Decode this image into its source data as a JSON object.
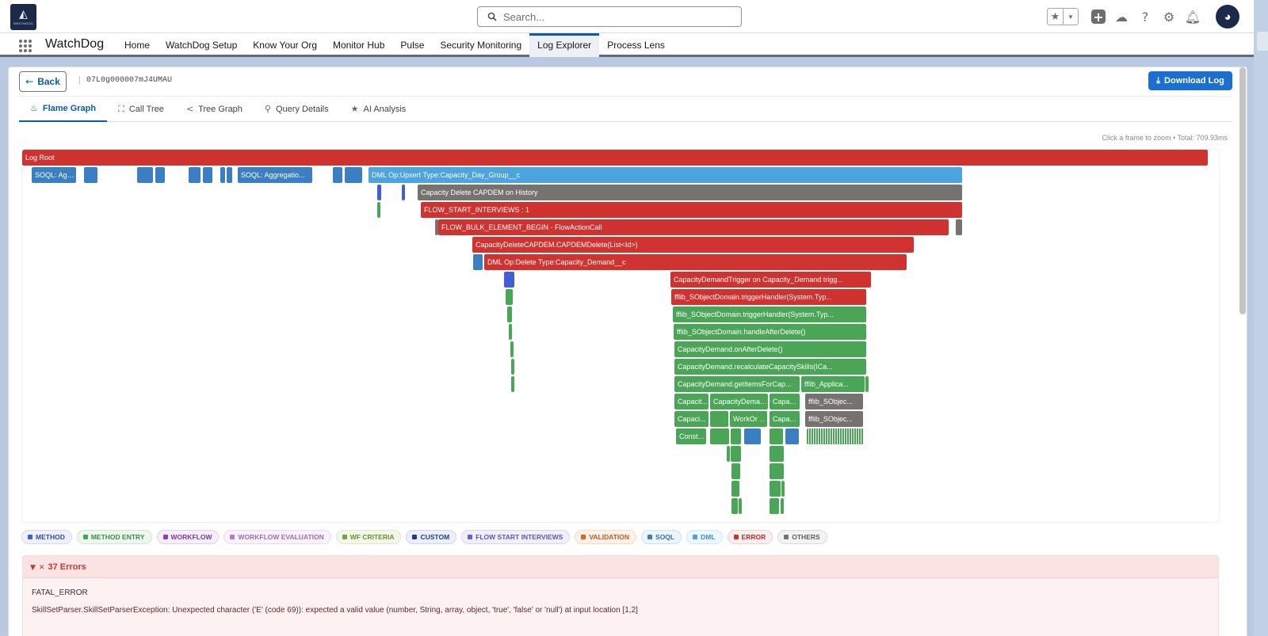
{
  "header": {
    "logo_icon": "watchdog-logo",
    "logo_text": "WATCHDOG",
    "search_placeholder": "Search...",
    "icons": [
      "favorites-star-icon",
      "chevron-down-icon",
      "add-icon",
      "trailhead-icon",
      "help-icon",
      "gear-icon",
      "bell-icon",
      "avatar"
    ]
  },
  "app_nav": {
    "app_name": "WatchDog",
    "items": [
      "Home",
      "WatchDog Setup",
      "Know Your Org",
      "Monitor Hub",
      "Pulse",
      "Security Monitoring",
      "Log Explorer",
      "Process Lens"
    ],
    "active": "Log Explorer"
  },
  "toolbar": {
    "back_label": "Back",
    "record_id": "07L0g000007mJ4UMAU",
    "download_label": "Download Log"
  },
  "tabs": {
    "items": [
      {
        "label": "Flame Graph",
        "icon": "flame-icon"
      },
      {
        "label": "Call Tree",
        "icon": "hierarchy-icon"
      },
      {
        "label": "Tree Graph",
        "icon": "share-icon"
      },
      {
        "label": "Query Details",
        "icon": "search-icon"
      },
      {
        "label": "AI Analysis",
        "icon": "star-icon"
      }
    ],
    "active": "Flame Graph"
  },
  "flame": {
    "hint": "Click a frame to zoom",
    "separator": " • ",
    "total": "Total: 709.93ms",
    "colors": {
      "error": "#d0322f",
      "dml": "#4ba3e0",
      "soql": "#3a7fc4",
      "method": "#3f5fd8",
      "custom": "#767270",
      "others": "#767270",
      "entry": "#4aa556"
    },
    "labels": {
      "root": "Log Root",
      "soql1": "SOQL: Agg...",
      "soql2": "SOQL: Aggregatio...",
      "dml_upsert": "DML Op:Upsert Type:Capacity_Day_Group__c",
      "capdem_history": "Capacity Delete CAPDEM on History",
      "flow_start": "FLOW_START_INTERVIEWS : 1",
      "flow_bulk": "FLOW_BULK_ELEMENT_BEGIN - FlowActionCall",
      "capdem_delete": "CapacityDeleteCAPDEM.CAPDEMDelete(List<Id>)",
      "dml_delete": "DML Op:Delete Type:Capacity_Demand__c",
      "trigger": "CapacityDemandTrigger on Capacity_Demand trigg...",
      "trigger_handler_1": "fflib_SObjectDomain.triggerHandler(System.Typ...",
      "trigger_handler_2": "fflib_SObjectDomain.triggerHandler(System.Typ...",
      "handle_after_delete": "fflib_SObjectDomain.handleAfterDelete()",
      "on_after_delete": "CapacityDemand.onAfterDelete()",
      "recalculate": "CapacityDemand.recalculateCapacitySkills(ICa...",
      "get_items": "CapacityDemand.getItemsForCap...",
      "fflib_applica": "fflib_Applica...",
      "capacit_1": "Capacit...",
      "capacity_deman": "CapacityDeman...",
      "capaci_1": "Capaci...",
      "fflib_sobjec_1": "fflib_SObjec...",
      "capaci_2": "Capaci...",
      "workord": "WorkOrd...",
      "capaci_3": "Capaci...",
      "fflib_sobjec_2": "fflib_SObjec...",
      "consta": "Consta..."
    }
  },
  "legend": [
    {
      "label": "METHOD",
      "color": "#3f5fd8",
      "text": "#2c4bb7",
      "bg": "#eef1fb",
      "border": "#d3daf3"
    },
    {
      "label": "METHOD ENTRY",
      "color": "#4aa556",
      "text": "#3d8b48",
      "bg": "#eef7ef",
      "border": "#d0e8d3"
    },
    {
      "label": "WORKFLOW",
      "color": "#8b3fd0",
      "text": "#7a36b8",
      "bg": "#f5eefb",
      "border": "#e2d1f2"
    },
    {
      "label": "WORKFLOW EVALUATION",
      "color": "#b57ad8",
      "text": "#a06cc3",
      "bg": "#f8f2fb",
      "border": "#eadbf3"
    },
    {
      "label": "WF CRITERIA",
      "color": "#7ba33b",
      "text": "#6b8f33",
      "bg": "#f3f7ea",
      "border": "#dfe9cc"
    },
    {
      "label": "CUSTOM",
      "color": "#1f3a93",
      "text": "#1f3a93",
      "bg": "#eceff7",
      "border": "#cfd6ea"
    },
    {
      "label": "FLOW START INTERVIEWS",
      "color": "#6a5fd8",
      "text": "#5e55c2",
      "bg": "#f0effb",
      "border": "#d9d6f3"
    },
    {
      "label": "VALIDATION",
      "color": "#e0651a",
      "text": "#c85a17",
      "bg": "#fdf1ea",
      "border": "#f6d9c6"
    },
    {
      "label": "SOQL",
      "color": "#3a7fc4",
      "text": "#336fac",
      "bg": "#edf4fb",
      "border": "#cfe0f2"
    },
    {
      "label": "DML",
      "color": "#4ba3e0",
      "text": "#3e90c8",
      "bg": "#eef7fd",
      "border": "#d1e8f7"
    },
    {
      "label": "ERROR",
      "color": "#d0322f",
      "text": "#b82d2a",
      "bg": "#fcefef",
      "border": "#f2d1d0"
    },
    {
      "label": "OTHERS",
      "color": "#767270",
      "text": "#5f5c5a",
      "bg": "#f3f3f3",
      "border": "#dcdcdc"
    }
  ],
  "errors": {
    "count_label": "37 Errors",
    "type": "FATAL_ERROR",
    "message": "SkillSetParser.SkillSetParserException: Unexpected character ('E' (code 69)): expected a valid value (number, String, array, object, 'true', 'false' or 'null') at input location [1,2]"
  }
}
